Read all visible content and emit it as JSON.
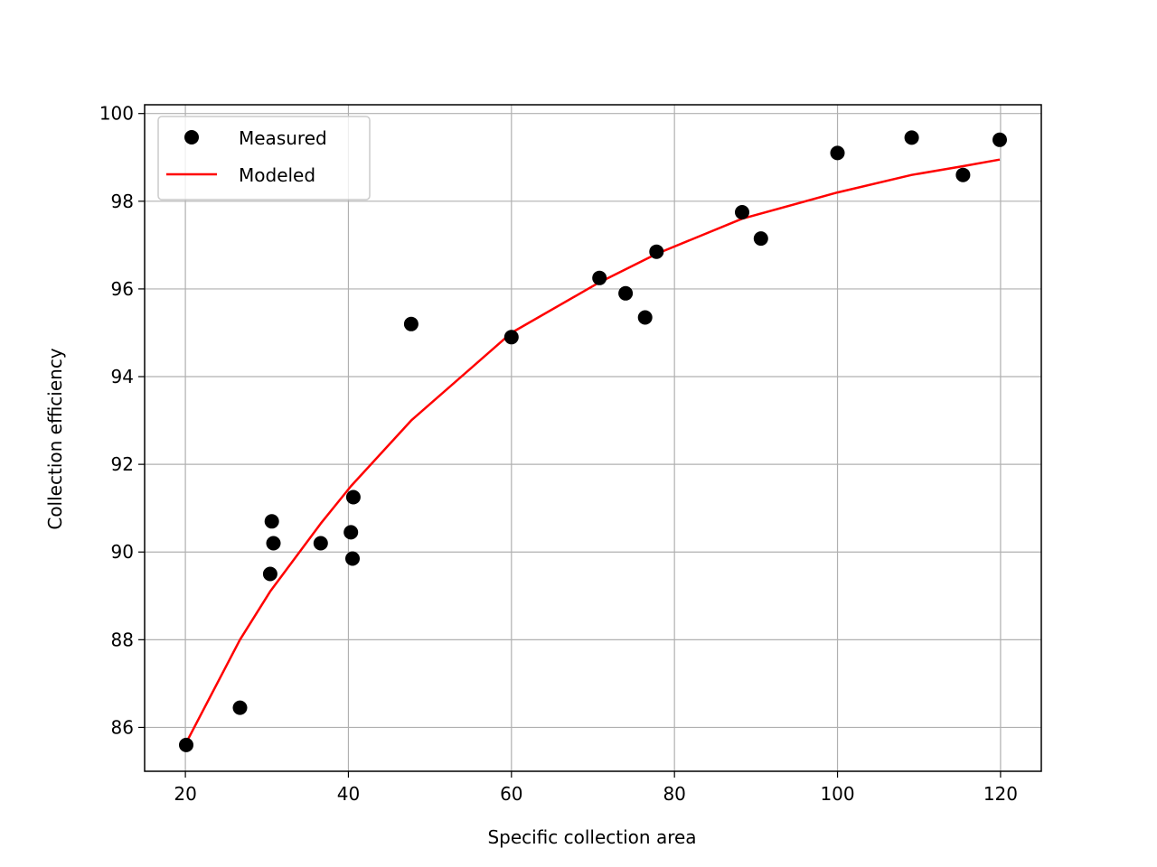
{
  "chart_data": {
    "type": "scatter",
    "xlabel": "Specific collection area",
    "ylabel": "Collection efficiency",
    "xlim": [
      15,
      125
    ],
    "ylim": [
      85,
      100.2
    ],
    "xticks": [
      20,
      40,
      60,
      80,
      100,
      120
    ],
    "yticks": [
      86,
      88,
      90,
      92,
      94,
      96,
      98,
      100
    ],
    "grid": true,
    "legend_position": "top-left",
    "series": [
      {
        "name": "Measured",
        "kind": "scatter",
        "color": "#000000",
        "points": [
          [
            20.1,
            85.6
          ],
          [
            26.7,
            86.45
          ],
          [
            30.4,
            89.5
          ],
          [
            30.6,
            90.7
          ],
          [
            30.8,
            90.2
          ],
          [
            36.6,
            90.2
          ],
          [
            40.3,
            90.45
          ],
          [
            40.5,
            89.85
          ],
          [
            40.6,
            91.25
          ],
          [
            47.7,
            95.2
          ],
          [
            60.0,
            94.9
          ],
          [
            70.8,
            96.25
          ],
          [
            74.0,
            95.9
          ],
          [
            76.4,
            95.35
          ],
          [
            77.8,
            96.85
          ],
          [
            88.3,
            97.75
          ],
          [
            90.6,
            97.15
          ],
          [
            100.0,
            99.1
          ],
          [
            109.1,
            99.45
          ],
          [
            115.4,
            98.6
          ],
          [
            119.9,
            99.4
          ]
        ]
      },
      {
        "name": "Modeled",
        "kind": "line",
        "color": "#ff0000",
        "points": [
          [
            20.1,
            85.65
          ],
          [
            26.7,
            88.0
          ],
          [
            30.4,
            89.1
          ],
          [
            36.6,
            90.65
          ],
          [
            40.3,
            91.5
          ],
          [
            47.7,
            93.0
          ],
          [
            60.0,
            95.0
          ],
          [
            70.8,
            96.15
          ],
          [
            77.8,
            96.8
          ],
          [
            88.3,
            97.6
          ],
          [
            100.0,
            98.2
          ],
          [
            109.1,
            98.6
          ],
          [
            115.4,
            98.8
          ],
          [
            119.9,
            98.95
          ]
        ]
      }
    ]
  }
}
